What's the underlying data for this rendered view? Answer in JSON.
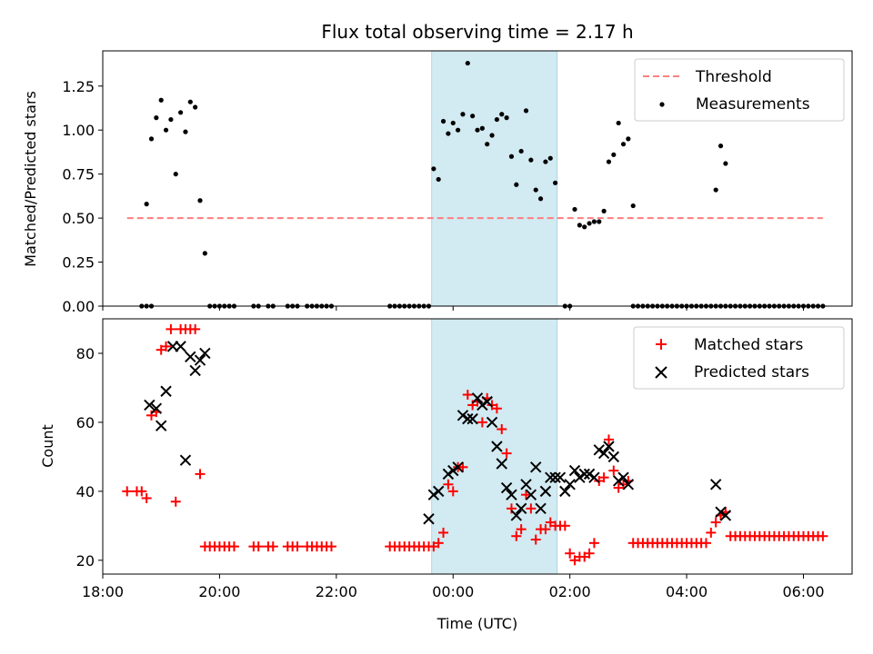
{
  "chart_data": [
    {
      "type": "scatter",
      "title": "Flux total observing time = 2.17 h",
      "xlabel": "",
      "ylabel": "Matched/Predicted stars",
      "xlim": [
        "18:00",
        "06:50"
      ],
      "ylim": [
        0,
        1.45
      ],
      "yticks": [
        0.0,
        0.25,
        0.5,
        0.75,
        1.0,
        1.25
      ],
      "ytick_labels": [
        "0.00",
        "0.25",
        "0.50",
        "0.75",
        "1.00",
        "1.25"
      ],
      "shaded_span": {
        "from": "23:38",
        "to": "01:47",
        "color": "#add8e6"
      },
      "legend": {
        "position": "top-right",
        "entries": [
          "Threshold",
          "Measurements"
        ]
      },
      "series": [
        {
          "name": "Threshold",
          "kind": "dashed-line",
          "color": "#ff7f7f",
          "x": [
            "18:25",
            "06:20"
          ],
          "y": [
            0.5,
            0.5
          ]
        },
        {
          "name": "Measurements",
          "kind": "dot",
          "color": "#000000",
          "x": [
            "18:45",
            "18:50",
            "18:55",
            "19:00",
            "19:05",
            "19:10",
            "19:15",
            "19:20",
            "19:25",
            "19:30",
            "19:35",
            "19:40",
            "19:45",
            "19:50",
            "23:40",
            "23:45",
            "23:50",
            "23:55",
            "00:00",
            "00:05",
            "00:10",
            "00:15",
            "00:20",
            "00:25",
            "00:30",
            "00:35",
            "00:40",
            "00:45",
            "00:50",
            "00:55",
            "01:00",
            "01:05",
            "01:10",
            "01:15",
            "01:20",
            "01:25",
            "01:30",
            "01:35",
            "01:40",
            "01:45",
            "02:05",
            "02:10",
            "02:15",
            "02:20",
            "02:25",
            "02:30",
            "02:35",
            "02:40",
            "02:45",
            "02:50",
            "02:55",
            "03:00",
            "03:05",
            "04:30",
            "04:35",
            "04:40"
          ],
          "y": [
            0.58,
            0.95,
            1.07,
            1.17,
            1.0,
            1.06,
            0.75,
            1.1,
            0.99,
            1.16,
            1.13,
            0.6,
            0.3,
            0.0,
            0.78,
            0.72,
            1.05,
            0.98,
            1.04,
            1.0,
            1.09,
            1.38,
            1.08,
            1.0,
            1.01,
            0.92,
            0.97,
            1.06,
            1.09,
            1.07,
            0.85,
            0.69,
            0.88,
            1.11,
            0.83,
            0.66,
            0.61,
            0.82,
            0.84,
            0.7,
            0.55,
            0.46,
            0.45,
            0.47,
            0.48,
            0.48,
            0.54,
            0.82,
            0.86,
            1.04,
            0.92,
            0.95,
            0.57,
            0.66,
            0.91,
            0.81
          ]
        },
        {
          "name": "",
          "kind": "dot",
          "color": "#000000",
          "note": "zero-valued samples",
          "x": [
            "18:40",
            "18:45",
            "18:50",
            "19:55",
            "20:00",
            "20:05",
            "20:10",
            "20:15",
            "20:35",
            "20:40",
            "20:50",
            "20:55",
            "21:10",
            "21:15",
            "21:20",
            "21:30",
            "21:35",
            "21:40",
            "21:45",
            "21:50",
            "21:55",
            "22:55",
            "23:00",
            "23:05",
            "23:10",
            "23:15",
            "23:20",
            "23:25",
            "23:30",
            "23:35",
            "01:55",
            "02:00"
          ],
          "y": [
            0,
            0,
            0,
            0,
            0,
            0,
            0,
            0,
            0,
            0,
            0,
            0,
            0,
            0,
            0,
            0,
            0,
            0,
            0,
            0,
            0,
            0,
            0,
            0,
            0,
            0,
            0,
            0,
            0,
            0,
            0,
            0
          ]
        },
        {
          "name": "",
          "kind": "dot",
          "color": "#000000",
          "note": "zero-valued tail",
          "x_range": [
            "03:05",
            "06:20"
          ],
          "step_minutes": 5,
          "y": 0
        }
      ]
    },
    {
      "type": "scatter",
      "title": "",
      "xlabel": "Time (UTC)",
      "ylabel": "Count",
      "xlim": [
        "18:00",
        "06:50"
      ],
      "ylim": [
        16,
        90
      ],
      "yticks": [
        20,
        40,
        60,
        80
      ],
      "ytick_labels": [
        "20",
        "40",
        "60",
        "80"
      ],
      "xticks": [
        "18:00",
        "20:00",
        "22:00",
        "00:00",
        "02:00",
        "04:00",
        "06:00"
      ],
      "shaded_span": {
        "from": "23:38",
        "to": "01:47",
        "color": "#add8e6"
      },
      "legend": {
        "position": "top-right",
        "entries": [
          "Matched stars",
          "Predicted stars"
        ]
      },
      "series": [
        {
          "name": "Matched stars",
          "marker": "plus",
          "color": "#ff0000",
          "x": [
            "18:25",
            "18:35",
            "18:40",
            "18:45",
            "18:50",
            "18:55",
            "19:00",
            "19:05",
            "19:10",
            "19:15",
            "19:20",
            "19:25",
            "19:30",
            "19:35",
            "19:40",
            "23:45",
            "23:50",
            "23:55",
            "00:00",
            "00:05",
            "00:10",
            "00:15",
            "00:20",
            "00:25",
            "00:30",
            "00:35",
            "00:40",
            "00:45",
            "00:50",
            "00:55",
            "01:00",
            "01:05",
            "01:10",
            "01:15",
            "01:20",
            "01:25",
            "01:30",
            "01:35",
            "01:40",
            "01:45",
            "01:50",
            "01:55",
            "02:00",
            "02:05",
            "02:10",
            "02:15",
            "02:20",
            "02:25",
            "02:30",
            "02:35",
            "02:40",
            "02:45",
            "02:50",
            "02:55",
            "03:00",
            "04:25",
            "04:30",
            "04:35",
            "04:40"
          ],
          "y": [
            40,
            40,
            40,
            38,
            62,
            63,
            81,
            82,
            87,
            37,
            87,
            87,
            87,
            87,
            45,
            25,
            28,
            42,
            40,
            47,
            47,
            68,
            65,
            66,
            60,
            67,
            65,
            64,
            58,
            51,
            35,
            27,
            29,
            39,
            35,
            26,
            29,
            29,
            31,
            30,
            30,
            30,
            22,
            20,
            21,
            21,
            22,
            25,
            43,
            44,
            55,
            46,
            41,
            42,
            43,
            28,
            31,
            33,
            34
          ]
        },
        {
          "name": "",
          "marker": "plus",
          "color": "#ff0000",
          "note": "baseline segments",
          "x": [
            "19:45",
            "19:50",
            "19:55",
            "20:00",
            "20:05",
            "20:10",
            "20:15",
            "20:35",
            "20:40",
            "20:50",
            "20:55",
            "21:10",
            "21:15",
            "21:20",
            "21:30",
            "21:35",
            "21:40",
            "21:45",
            "21:50",
            "21:55",
            "22:55",
            "23:00",
            "23:05",
            "23:10",
            "23:15",
            "23:20",
            "23:25",
            "23:30",
            "23:35",
            "23:40"
          ],
          "y": [
            24,
            24,
            24,
            24,
            24,
            24,
            24,
            24,
            24,
            24,
            24,
            24,
            24,
            24,
            24,
            24,
            24,
            24,
            24,
            24,
            24,
            24,
            24,
            24,
            24,
            24,
            24,
            24,
            24,
            24
          ]
        },
        {
          "name": "",
          "marker": "plus",
          "color": "#ff0000",
          "note": "baseline segments",
          "x_range_a": [
            "03:05",
            "04:20"
          ],
          "y_a": 25,
          "x_range_b": [
            "04:45",
            "06:20"
          ],
          "y_b": 27,
          "step_minutes": 5
        },
        {
          "name": "Predicted stars",
          "marker": "x",
          "color": "#000000",
          "x": [
            "18:48",
            "18:55",
            "19:00",
            "19:05",
            "19:12",
            "19:20",
            "19:25",
            "19:30",
            "19:35",
            "19:40",
            "19:45",
            "23:35",
            "23:40",
            "23:45",
            "23:55",
            "00:00",
            "00:05",
            "00:10",
            "00:15",
            "00:20",
            "00:25",
            "00:30",
            "00:35",
            "00:40",
            "00:45",
            "00:50",
            "00:55",
            "01:00",
            "01:05",
            "01:10",
            "01:15",
            "01:20",
            "01:25",
            "01:30",
            "01:35",
            "01:40",
            "01:45",
            "01:50",
            "01:55",
            "02:00",
            "02:05",
            "02:10",
            "02:15",
            "02:20",
            "02:25",
            "02:30",
            "02:35",
            "02:40",
            "02:45",
            "02:50",
            "02:55",
            "03:00",
            "04:30",
            "04:35",
            "04:40"
          ],
          "y": [
            65,
            64,
            59,
            69,
            82,
            82,
            49,
            79,
            75,
            78,
            80,
            32,
            39,
            40,
            45,
            46,
            47,
            62,
            61,
            61,
            67,
            65,
            66,
            60,
            53,
            48,
            41,
            39,
            33,
            35,
            42,
            39,
            47,
            35,
            40,
            44,
            44,
            44,
            40,
            42,
            46,
            44,
            45,
            45,
            44,
            52,
            51,
            53,
            50,
            43,
            44,
            42,
            42,
            34,
            33
          ]
        }
      ]
    }
  ]
}
